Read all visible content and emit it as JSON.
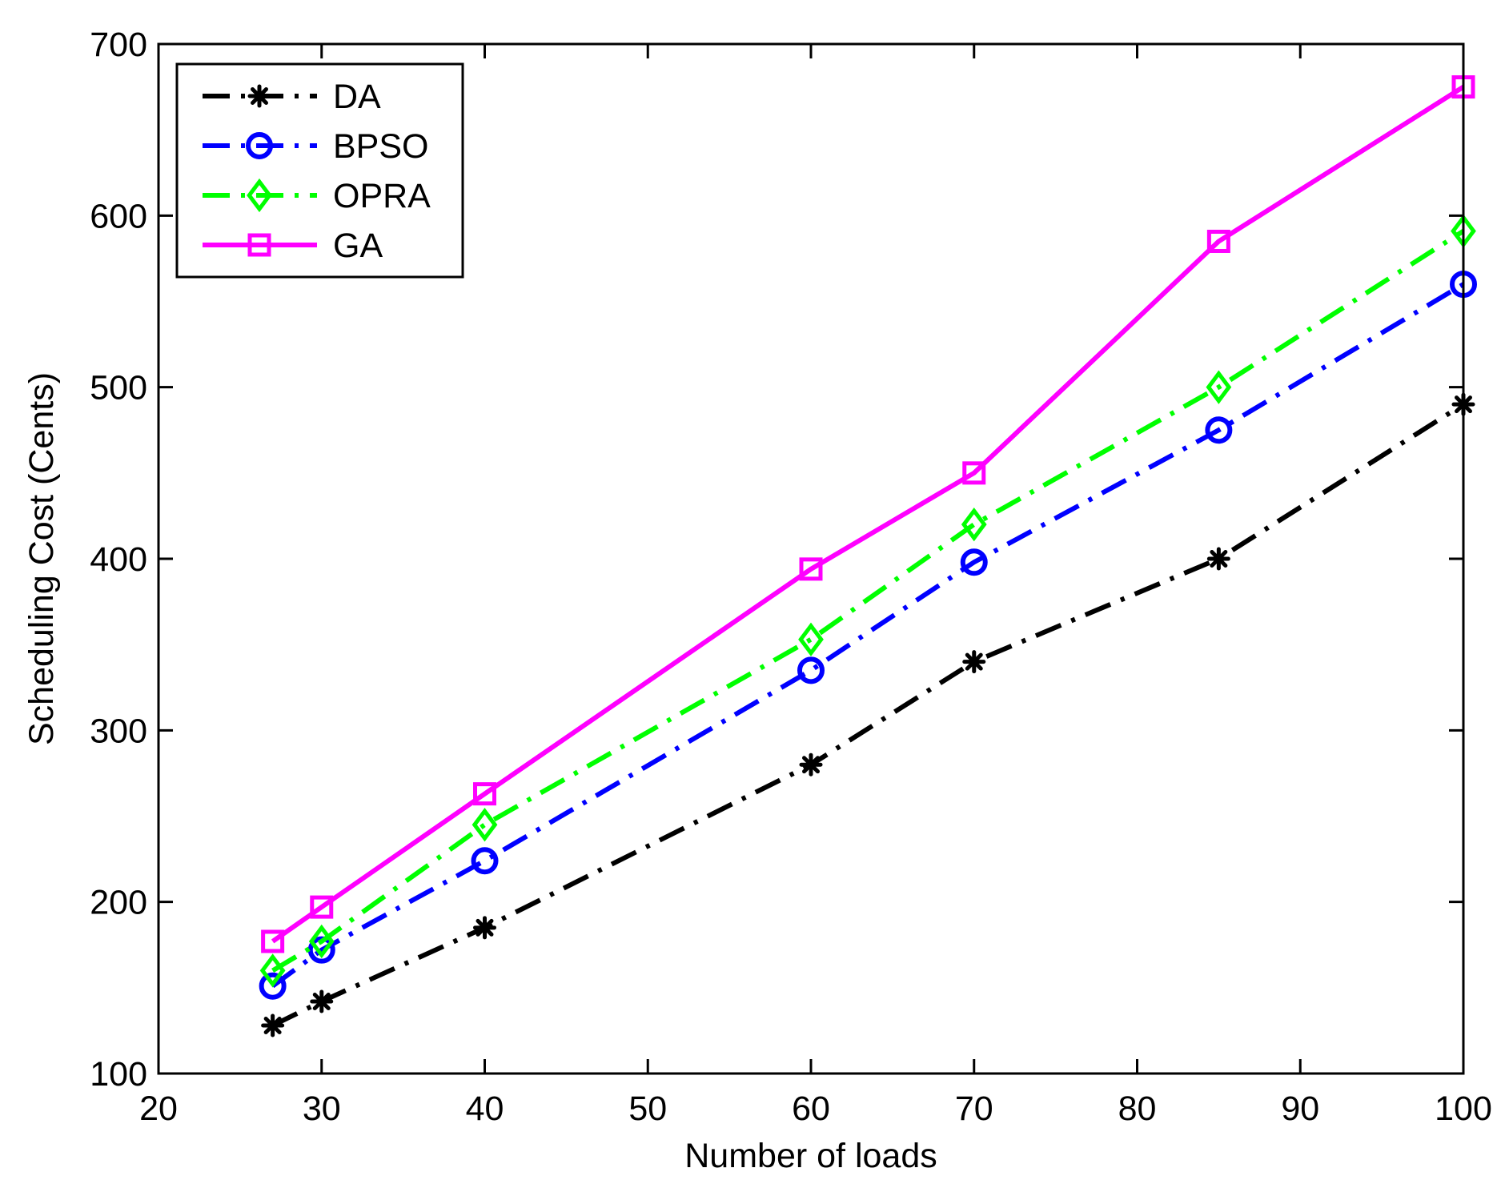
{
  "chart_data": {
    "type": "line",
    "title": "",
    "xlabel": "Number of loads",
    "ylabel": "Scheduling Cost (Cents)",
    "xlim": [
      20,
      100
    ],
    "ylim": [
      100,
      700
    ],
    "xticks": [
      20,
      30,
      40,
      50,
      60,
      70,
      80,
      90,
      100
    ],
    "yticks": [
      100,
      200,
      300,
      400,
      500,
      600,
      700
    ],
    "grid": false,
    "legend_position": "top-left",
    "x": [
      27,
      30,
      40,
      60,
      70,
      85,
      100
    ],
    "series": [
      {
        "name": "DA",
        "color": "#000000",
        "marker": "asterisk",
        "line": "dashdot",
        "values": [
          128,
          142,
          185,
          280,
          340,
          400,
          490
        ]
      },
      {
        "name": "BPSO",
        "color": "#0000ff",
        "marker": "circle",
        "line": "dashdot",
        "values": [
          151,
          172,
          224,
          335,
          398,
          475,
          560
        ]
      },
      {
        "name": "OPRA",
        "color": "#00ff00",
        "marker": "diamond",
        "line": "dashdot",
        "values": [
          160,
          177,
          245,
          353,
          420,
          500,
          591
        ]
      },
      {
        "name": "GA",
        "color": "#ff00ff",
        "marker": "square",
        "line": "solid",
        "values": [
          177,
          197,
          263,
          394,
          450,
          585,
          675
        ]
      }
    ]
  }
}
